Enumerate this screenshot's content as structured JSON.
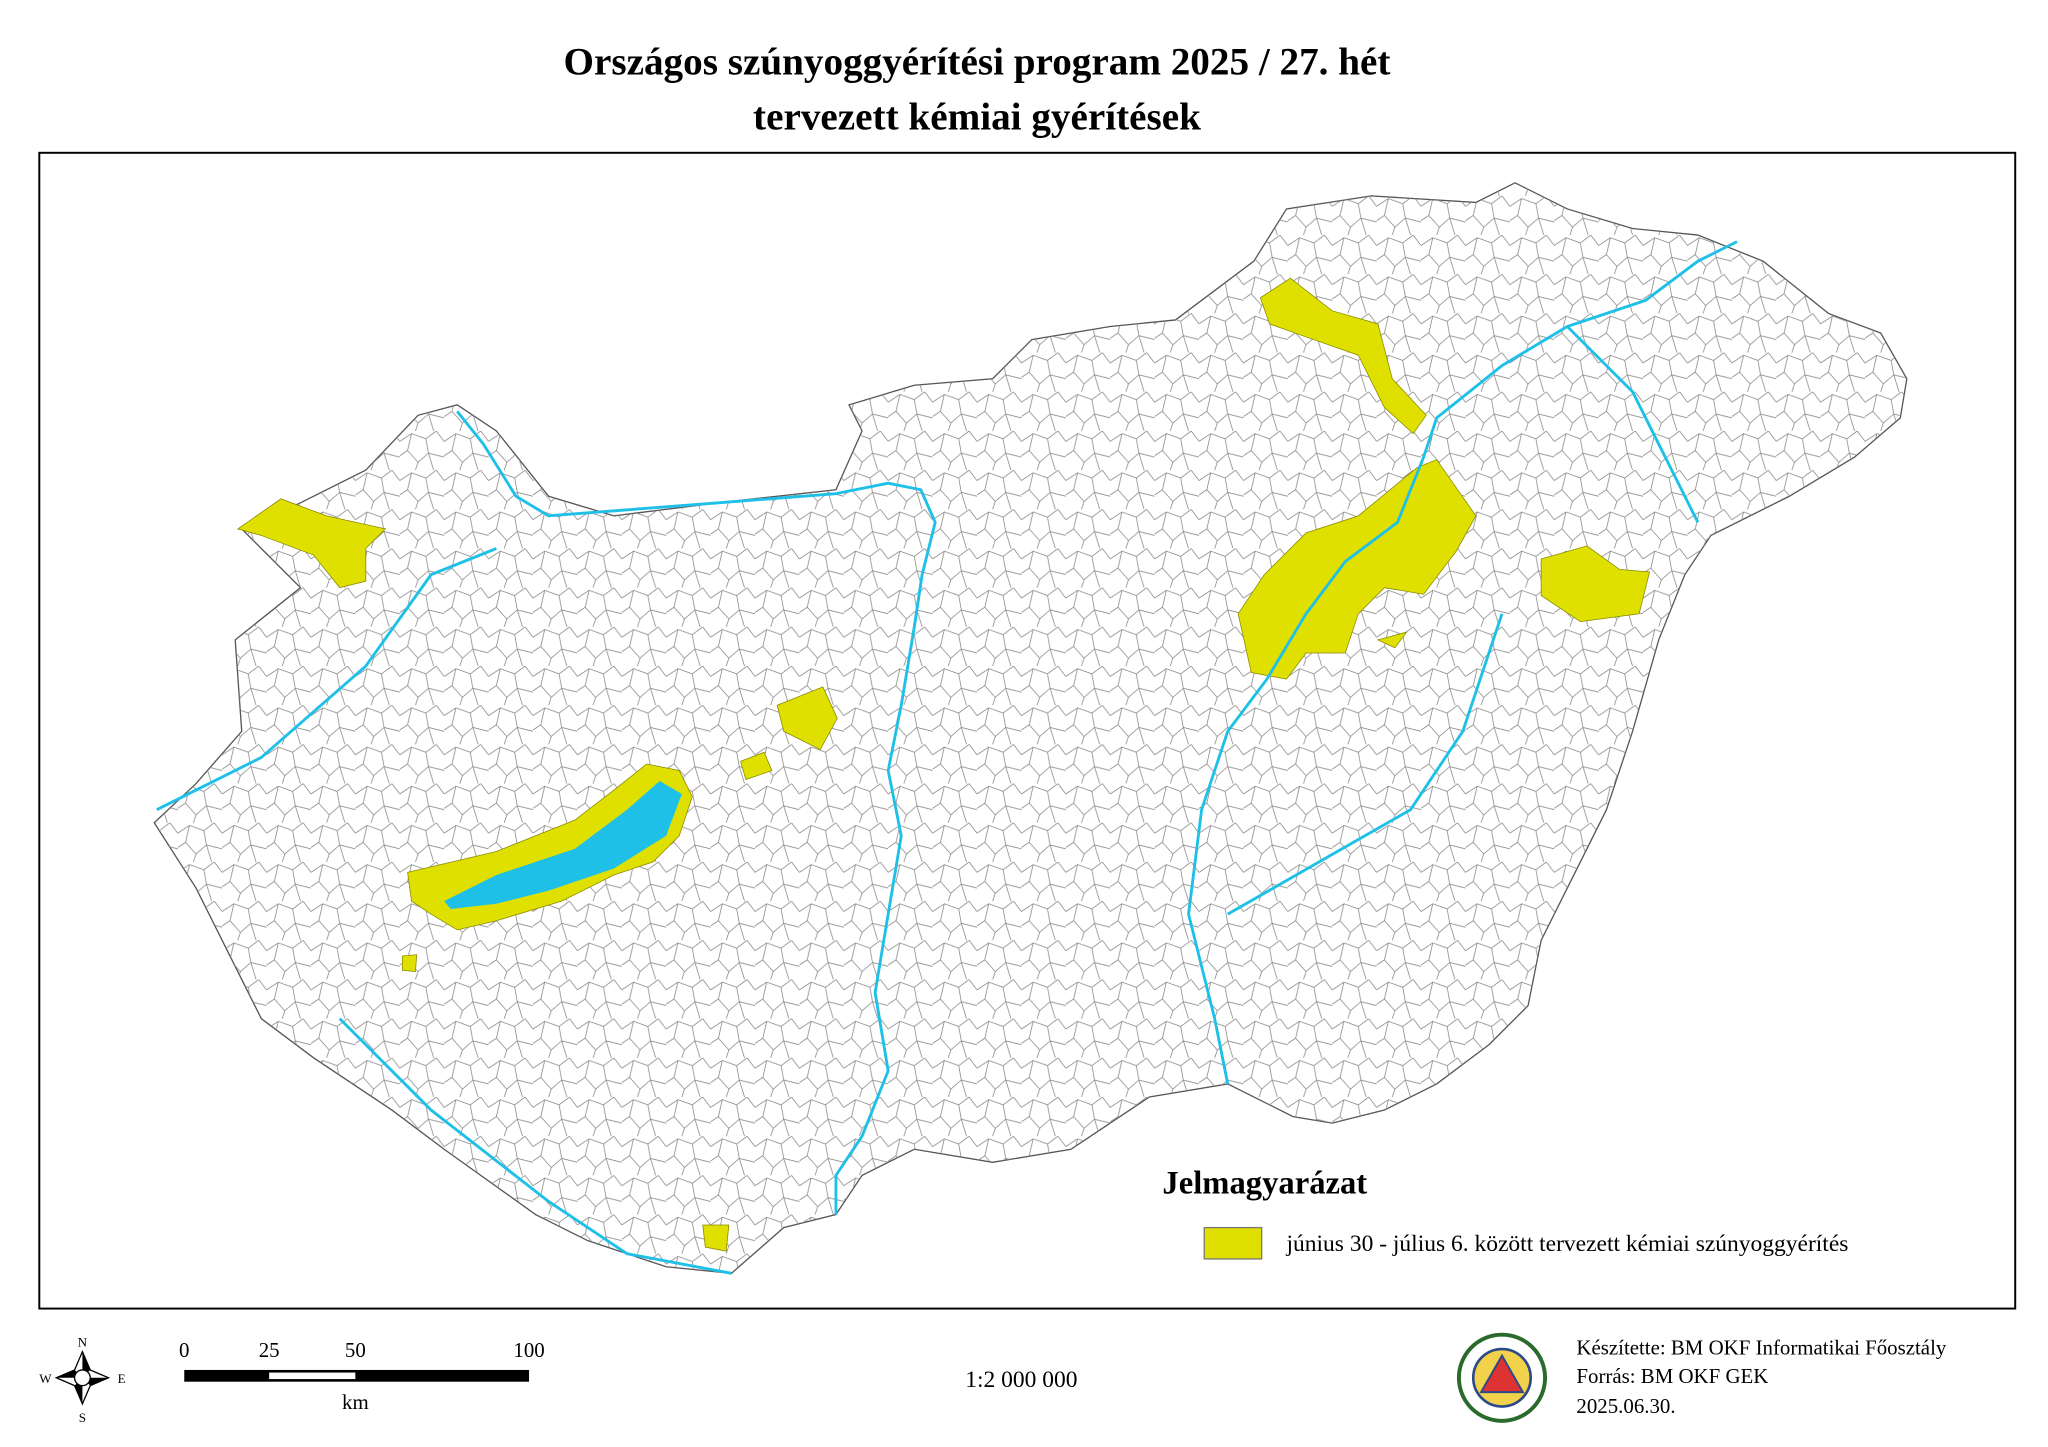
{
  "title": {
    "line1": "Országos szúnyoggyérítési program 2025 / 27. hét",
    "line2": "tervezett kémiai gyérítések"
  },
  "legend": {
    "title": "Jelmagyarázat",
    "items": [
      {
        "label": "június 30 - július 6. között tervezett kémiai szúnyoggyérítés",
        "color": "#e0e000"
      }
    ]
  },
  "compass": {
    "n": "N",
    "e": "E",
    "s": "S",
    "w": "W"
  },
  "scale_bar": {
    "labels": [
      "0",
      "25",
      "50",
      "100"
    ],
    "unit": "km"
  },
  "scale": "1:2 000 000",
  "credits": [
    "Készítette: BM OKF Informatikai Főosztály",
    "Forrás: BM OKF GEK",
    "2025.06.30."
  ]
}
